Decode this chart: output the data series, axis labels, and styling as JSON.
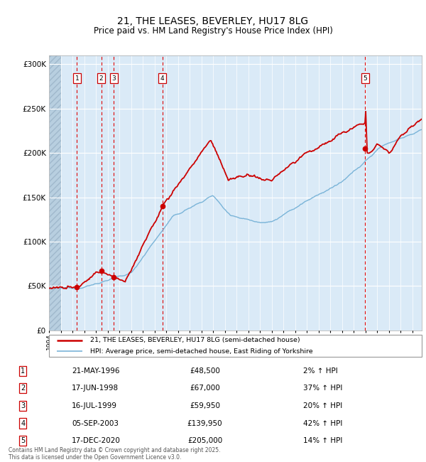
{
  "title": "21, THE LEASES, BEVERLEY, HU17 8LG",
  "subtitle": "Price paid vs. HM Land Registry's House Price Index (HPI)",
  "legend_line1": "21, THE LEASES, BEVERLEY, HU17 8LG (semi-detached house)",
  "legend_line2": "HPI: Average price, semi-detached house, East Riding of Yorkshire",
  "footer": "Contains HM Land Registry data © Crown copyright and database right 2025.\nThis data is licensed under the Open Government Licence v3.0.",
  "sale_prices": [
    48500,
    67000,
    59950,
    139950,
    205000
  ],
  "sale_labels": [
    "1",
    "2",
    "3",
    "4",
    "5"
  ],
  "table_dates": [
    "21-MAY-1996",
    "17-JUN-1998",
    "16-JUL-1999",
    "05-SEP-2003",
    "17-DEC-2020"
  ],
  "table_prices": [
    "£48,500",
    "£67,000",
    "£59,950",
    "£139,950",
    "£205,000"
  ],
  "table_hpi": [
    "2% ↑ HPI",
    "37% ↑ HPI",
    "20% ↑ HPI",
    "42% ↑ HPI",
    "14% ↑ HPI"
  ],
  "hpi_color": "#7ab4d8",
  "price_color": "#cc0000",
  "background_color": "#daeaf7",
  "hatch_color": "#b8cfe0",
  "grid_color": "#ffffff",
  "dashed_line_color": "#dd0000",
  "ylim": [
    0,
    310000
  ],
  "yticks": [
    0,
    50000,
    100000,
    150000,
    200000,
    250000,
    300000
  ],
  "ytick_labels": [
    "£0",
    "£50K",
    "£100K",
    "£150K",
    "£200K",
    "£250K",
    "£300K"
  ],
  "xstart": 1994.0,
  "xend": 2025.8
}
